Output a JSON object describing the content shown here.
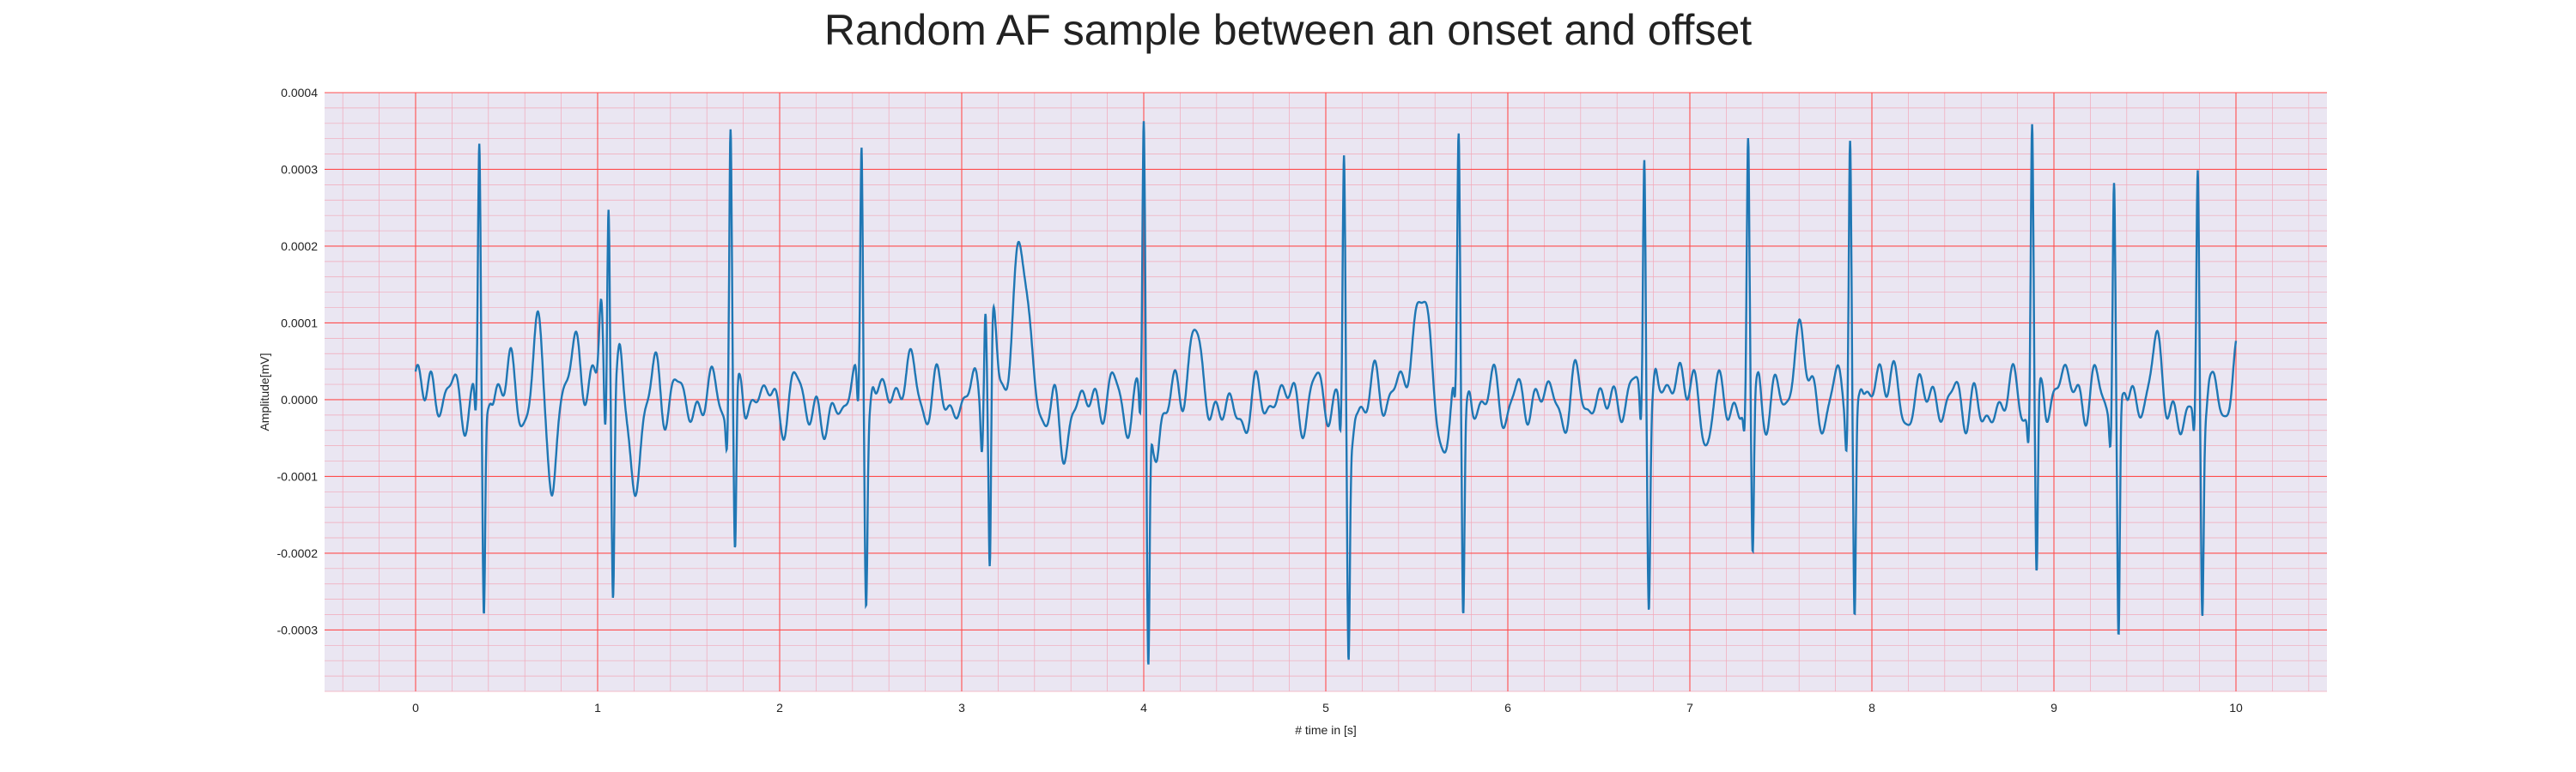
{
  "chart_data": {
    "type": "line",
    "title": "Random AF sample between an onset and offset",
    "xlabel": "# time in [s]",
    "ylabel": "Amplitude[mV]",
    "xlim": [
      -0.5,
      10.5
    ],
    "ylim": [
      -0.00038,
      0.0004
    ],
    "x_ticks": [
      0,
      1,
      2,
      3,
      4,
      5,
      6,
      7,
      8,
      9,
      10
    ],
    "y_ticks": [
      0.0004,
      0.0003,
      0.0002,
      0.0001,
      0.0,
      -0.0001,
      -0.0002,
      -0.0003
    ],
    "y_tick_labels": [
      "0.0004",
      "0.0003",
      "0.0002",
      "0.0001",
      "0.0000",
      "-0.0001",
      "-0.0002",
      "-0.0003"
    ],
    "grid": true,
    "major_grid_color": "#ff4d4d",
    "minor_grid_color": "#f2a8b8",
    "background_color": "#eae6f2",
    "series": [
      {
        "color": "#1f77b4",
        "r_peaks": [
          {
            "t": 0.35,
            "r": 0.000325,
            "s": -0.00028
          },
          {
            "t": 1.06,
            "r": 0.00029,
            "s": -0.00025
          },
          {
            "t": 1.73,
            "r": 0.00037,
            "s": -0.000225
          },
          {
            "t": 2.45,
            "r": 0.00035,
            "s": -0.000225
          },
          {
            "t": 3.13,
            "r": 0.00015,
            "s": -0.00028
          },
          {
            "t": 4.0,
            "r": 0.00036,
            "s": -0.000345
          },
          {
            "t": 5.1,
            "r": 0.000335,
            "s": -0.0003
          },
          {
            "t": 5.73,
            "r": 0.000318,
            "s": -0.00028
          },
          {
            "t": 6.75,
            "r": 0.00035,
            "s": -0.00023
          },
          {
            "t": 7.32,
            "r": 0.000318,
            "s": -0.000225
          },
          {
            "t": 7.88,
            "r": 0.000358,
            "s": -0.00029
          },
          {
            "t": 8.88,
            "r": 0.000365,
            "s": -0.000255
          },
          {
            "t": 9.33,
            "r": 0.000295,
            "s": -0.000325
          },
          {
            "t": 9.79,
            "r": 0.000297,
            "s": -0.00026
          }
        ],
        "waves": [
          {
            "t": 0.08,
            "a": 4.5e-05,
            "w": 0.02
          },
          {
            "t": 0.52,
            "a": 4e-05,
            "w": 0.02
          },
          {
            "t": 0.68,
            "a": 7e-05,
            "w": 0.025
          },
          {
            "t": 0.75,
            "a": -0.000125,
            "w": 0.02
          },
          {
            "t": 0.88,
            "a": 8e-05,
            "w": 0.03
          },
          {
            "t": 1.02,
            "a": 0.00014,
            "w": 0.012
          },
          {
            "t": 1.13,
            "a": 3e-05,
            "w": 0.015
          },
          {
            "t": 1.2,
            "a": -0.000125,
            "w": 0.025
          },
          {
            "t": 1.32,
            "a": 3e-05,
            "w": 0.025
          },
          {
            "t": 2.25,
            "a": -4e-05,
            "w": 0.03
          },
          {
            "t": 2.7,
            "a": 5e-05,
            "w": 0.03
          },
          {
            "t": 3.17,
            "a": 0.00011,
            "w": 0.015
          },
          {
            "t": 3.32,
            "a": 0.000195,
            "w": 0.04
          },
          {
            "t": 3.55,
            "a": -7e-05,
            "w": 0.03
          },
          {
            "t": 4.06,
            "a": -9e-05,
            "w": 0.02
          },
          {
            "t": 4.27,
            "a": 7.5e-05,
            "w": 0.035
          },
          {
            "t": 4.5,
            "a": -4e-05,
            "w": 0.03
          },
          {
            "t": 5.14,
            "a": -7e-05,
            "w": 0.02
          },
          {
            "t": 5.35,
            "a": 3e-05,
            "w": 0.03
          },
          {
            "t": 5.53,
            "a": 0.00016,
            "w": 0.04
          },
          {
            "t": 5.62,
            "a": -7e-05,
            "w": 0.03
          },
          {
            "t": 6.95,
            "a": 5.5e-05,
            "w": 0.025
          },
          {
            "t": 7.1,
            "a": -4e-05,
            "w": 0.025
          },
          {
            "t": 7.6,
            "a": 8.5e-05,
            "w": 0.03
          },
          {
            "t": 8.05,
            "a": 5e-05,
            "w": 0.025
          },
          {
            "t": 8.6,
            "a": -4e-05,
            "w": 0.025
          },
          {
            "t": 9.05,
            "a": 3e-05,
            "w": 0.025
          },
          {
            "t": 9.15,
            "a": 3e-05,
            "w": 0.02
          },
          {
            "t": 9.58,
            "a": 5.5e-05,
            "w": 0.035
          },
          {
            "t": 9.7,
            "a": -6e-05,
            "w": 0.025
          },
          {
            "t": 10.0,
            "a": 4e-05,
            "w": 0.02
          }
        ]
      }
    ]
  }
}
